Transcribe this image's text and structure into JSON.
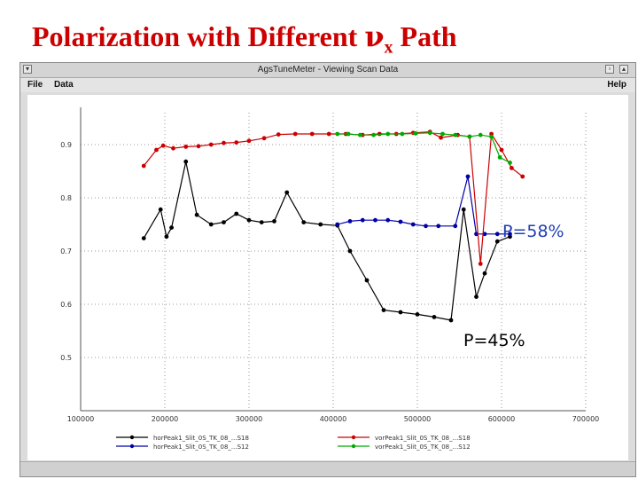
{
  "slide": {
    "title_prefix": "Polarization with Different ",
    "title_symbol": "ν",
    "title_sub": "x",
    "title_suffix": " Path"
  },
  "window": {
    "title": "AgsTuneMeter - Viewing Scan Data",
    "menu_file": "File",
    "menu_data": "Data",
    "menu_help": "Help"
  },
  "annotations": {
    "p58": "P=58%",
    "p45": "P=45%"
  },
  "colors": {
    "series_black": "#000000",
    "series_blue": "#0000aa",
    "series_red": "#cc0000",
    "series_green": "#00aa00",
    "annotation_blue": "#1f3fb4",
    "annotation_black": "#000000"
  },
  "chart_data": {
    "type": "line",
    "xlim": [
      100000,
      700000
    ],
    "ylim": [
      0.4,
      0.96
    ],
    "x_ticks": [
      100000,
      200000,
      300000,
      400000,
      500000,
      600000,
      700000
    ],
    "x_tick_labels": [
      "100000",
      "200000",
      "300000",
      "400000",
      "500000",
      "600000",
      "700000"
    ],
    "y_ticks": [
      0.5,
      0.6,
      0.7,
      0.8,
      0.9
    ],
    "y_tick_labels": [
      "0.5",
      "0.6",
      "0.7",
      "0.8",
      "0.9"
    ],
    "grid": true,
    "legend_position": "bottom",
    "series": [
      {
        "name": "horPeak1_Slit_0S_TK_08_...S18",
        "color": "#000000",
        "points": [
          [
            175000,
            0.724
          ],
          [
            195000,
            0.778
          ],
          [
            202000,
            0.727
          ],
          [
            208000,
            0.744
          ],
          [
            225000,
            0.868
          ],
          [
            238000,
            0.768
          ],
          [
            255000,
            0.75
          ],
          [
            270000,
            0.754
          ],
          [
            285000,
            0.77
          ],
          [
            300000,
            0.758
          ],
          [
            315000,
            0.754
          ],
          [
            330000,
            0.756
          ],
          [
            345000,
            0.81
          ],
          [
            365000,
            0.754
          ],
          [
            385000,
            0.75
          ],
          [
            405000,
            0.748
          ],
          [
            420000,
            0.7
          ],
          [
            440000,
            0.645
          ],
          [
            460000,
            0.589
          ],
          [
            480000,
            0.585
          ],
          [
            500000,
            0.581
          ],
          [
            520000,
            0.576
          ],
          [
            540000,
            0.57
          ],
          [
            555000,
            0.778
          ],
          [
            570000,
            0.614
          ],
          [
            580000,
            0.658
          ],
          [
            595000,
            0.718
          ],
          [
            610000,
            0.727
          ]
        ]
      },
      {
        "name": "horPeak1_Slit_0S_TK_08_...S12",
        "color": "#0000aa",
        "points": [
          [
            405000,
            0.75
          ],
          [
            420000,
            0.756
          ],
          [
            435000,
            0.758
          ],
          [
            450000,
            0.758
          ],
          [
            465000,
            0.758
          ],
          [
            480000,
            0.755
          ],
          [
            495000,
            0.75
          ],
          [
            510000,
            0.747
          ],
          [
            525000,
            0.747
          ],
          [
            545000,
            0.747
          ],
          [
            560000,
            0.84
          ],
          [
            570000,
            0.732
          ],
          [
            580000,
            0.732
          ],
          [
            595000,
            0.732
          ],
          [
            610000,
            0.732
          ]
        ]
      },
      {
        "name": "vorPeak1_Slit_0S_TK_08_...S18",
        "color": "#cc0000",
        "points": [
          [
            175000,
            0.86
          ],
          [
            190000,
            0.89
          ],
          [
            198000,
            0.898
          ],
          [
            210000,
            0.893
          ],
          [
            225000,
            0.896
          ],
          [
            240000,
            0.897
          ],
          [
            255000,
            0.9
          ],
          [
            270000,
            0.903
          ],
          [
            285000,
            0.904
          ],
          [
            300000,
            0.907
          ],
          [
            318000,
            0.912
          ],
          [
            335000,
            0.919
          ],
          [
            355000,
            0.92
          ],
          [
            375000,
            0.92
          ],
          [
            395000,
            0.92
          ],
          [
            415000,
            0.92
          ],
          [
            435000,
            0.918
          ],
          [
            455000,
            0.92
          ],
          [
            475000,
            0.92
          ],
          [
            495000,
            0.922
          ],
          [
            515000,
            0.924
          ],
          [
            528000,
            0.913
          ],
          [
            548000,
            0.918
          ],
          [
            562000,
            0.915
          ],
          [
            575000,
            0.676
          ],
          [
            588000,
            0.92
          ],
          [
            600000,
            0.89
          ],
          [
            612000,
            0.856
          ],
          [
            625000,
            0.84
          ]
        ]
      },
      {
        "name": "vorPeak1_Slit_0S_TK_08_...S12",
        "color": "#00aa00",
        "points": [
          [
            405000,
            0.92
          ],
          [
            418000,
            0.92
          ],
          [
            432000,
            0.918
          ],
          [
            448000,
            0.918
          ],
          [
            465000,
            0.92
          ],
          [
            482000,
            0.92
          ],
          [
            498000,
            0.921
          ],
          [
            515000,
            0.922
          ],
          [
            530000,
            0.92
          ],
          [
            545000,
            0.918
          ],
          [
            562000,
            0.915
          ],
          [
            575000,
            0.918
          ],
          [
            588000,
            0.915
          ],
          [
            598000,
            0.876
          ],
          [
            610000,
            0.866
          ]
        ]
      }
    ]
  }
}
